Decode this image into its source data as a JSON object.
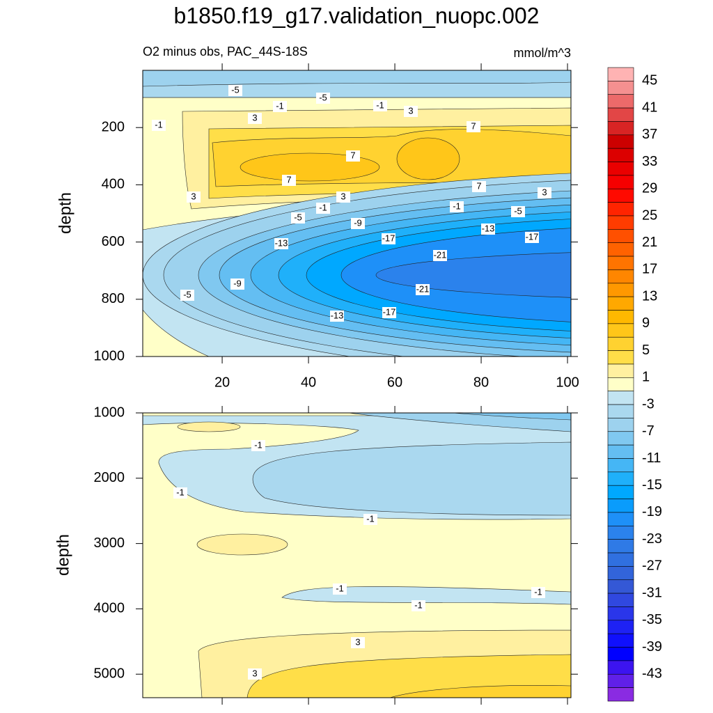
{
  "chart_data": [
    {
      "type": "contour",
      "title": "b1850.f19_g17.validation_nuopc.002",
      "subtitle": "O2 minus obs, PAC_44S-18S",
      "units": "mmol/m^3",
      "ylabel": "depth",
      "xlim": [
        1.6,
        100.8
      ],
      "xticks": [
        20,
        40,
        60,
        80,
        100
      ],
      "ylim": [
        0,
        1000
      ],
      "yticks": [
        200,
        400,
        600,
        800,
        1000
      ],
      "contour_labels": [
        -5,
        -1,
        -5,
        -1,
        3,
        3,
        -1,
        7,
        7,
        7,
        7,
        3,
        3,
        3,
        -1,
        -1,
        -5,
        -5,
        -9,
        -13,
        -13,
        -17,
        -17,
        -21,
        -21,
        -5,
        -9,
        -13,
        -17
      ],
      "colorbar_levels": [
        45,
        41,
        37,
        33,
        29,
        25,
        21,
        17,
        13,
        9,
        5,
        1,
        -3,
        -7,
        -11,
        -15,
        -19,
        -23,
        -27,
        -31,
        -35,
        -39,
        -43
      ],
      "colorbar_colors": [
        "#ffb3b3",
        "#f59090",
        "#ec6a6a",
        "#e24646",
        "#d82424",
        "#cc0000",
        "#dc0000",
        "#ea0000",
        "#f60000",
        "#ff0a00",
        "#ff2400",
        "#ff3c00",
        "#ff5000",
        "#ff6200",
        "#ff7400",
        "#ff8600",
        "#ff9800",
        "#ffa800",
        "#ffb800",
        "#ffc619",
        "#ffd230",
        "#ffde48",
        "#fff0a0",
        "#ffffc8",
        "#c2e4f2",
        "#aad8ef",
        "#9dd2ee",
        "#80c8f0",
        "#64bef2",
        "#45b6f5",
        "#1fb0fa",
        "#00a8ff",
        "#0a9cfc",
        "#1e90f8",
        "#2b82ec",
        "#2f7ae6",
        "#3070e0",
        "#3264da",
        "#3458d6",
        "#3048e0",
        "#2a36ea",
        "#1e22f4",
        "#1010fc",
        "#0000ff",
        "#3c14f0",
        "#6020e8",
        "#8a2be2"
      ]
    },
    {
      "type": "contour",
      "ylabel": "depth",
      "xlim": [
        1.6,
        100.8
      ],
      "xticks": [
        20,
        40,
        60,
        80,
        100
      ],
      "xtick_labels": false,
      "ylim": [
        1000,
        5360
      ],
      "yticks": [
        1000,
        2000,
        3000,
        4000,
        5000
      ],
      "contour_labels": [
        -1,
        -1,
        -1,
        -1,
        -1,
        -1,
        3,
        3
      ]
    }
  ]
}
